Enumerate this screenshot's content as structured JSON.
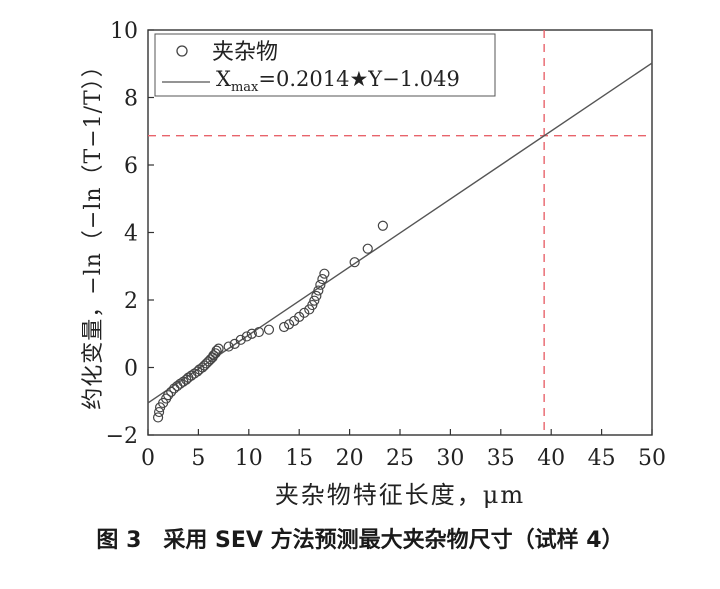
{
  "caption": "图 3　采用 SEV 方法预测最大夹杂物尺寸（试样 4）",
  "chart_data": {
    "type": "scatter",
    "title": "",
    "xlabel": "夹杂物特征长度，μm",
    "ylabel": "约化变量，−ln（−ln（T−1/T））",
    "xlim": [
      0,
      50
    ],
    "ylim": [
      -2,
      10
    ],
    "xticks": [
      0,
      5,
      10,
      15,
      20,
      25,
      30,
      35,
      40,
      45,
      50
    ],
    "yticks": [
      -2,
      0,
      2,
      4,
      6,
      8,
      10
    ],
    "grid": false,
    "legend_position": "top-left",
    "series": [
      {
        "name": "夹杂物",
        "marker": "circle-open",
        "color": "#444444",
        "points": [
          [
            1.0,
            -1.48
          ],
          [
            1.1,
            -1.32
          ],
          [
            1.2,
            -1.18
          ],
          [
            1.5,
            -1.05
          ],
          [
            1.8,
            -0.92
          ],
          [
            2.0,
            -0.82
          ],
          [
            2.3,
            -0.72
          ],
          [
            2.6,
            -0.62
          ],
          [
            2.9,
            -0.55
          ],
          [
            3.2,
            -0.48
          ],
          [
            3.5,
            -0.42
          ],
          [
            3.8,
            -0.36
          ],
          [
            4.0,
            -0.3
          ],
          [
            4.3,
            -0.24
          ],
          [
            4.6,
            -0.18
          ],
          [
            4.9,
            -0.12
          ],
          [
            5.1,
            -0.06
          ],
          [
            5.4,
            0.0
          ],
          [
            5.6,
            0.06
          ],
          [
            5.8,
            0.12
          ],
          [
            6.0,
            0.18
          ],
          [
            6.2,
            0.24
          ],
          [
            6.4,
            0.3
          ],
          [
            6.5,
            0.36
          ],
          [
            6.7,
            0.42
          ],
          [
            6.8,
            0.5
          ],
          [
            7.0,
            0.56
          ],
          [
            8.0,
            0.62
          ],
          [
            8.6,
            0.7
          ],
          [
            9.2,
            0.82
          ],
          [
            9.8,
            0.92
          ],
          [
            10.3,
            1.0
          ],
          [
            11.0,
            1.05
          ],
          [
            12.0,
            1.12
          ],
          [
            13.5,
            1.2
          ],
          [
            14.0,
            1.28
          ],
          [
            14.5,
            1.38
          ],
          [
            15.0,
            1.5
          ],
          [
            15.5,
            1.62
          ],
          [
            16.0,
            1.72
          ],
          [
            16.3,
            1.85
          ],
          [
            16.5,
            1.98
          ],
          [
            16.7,
            2.12
          ],
          [
            16.9,
            2.28
          ],
          [
            17.1,
            2.45
          ],
          [
            17.3,
            2.62
          ],
          [
            17.5,
            2.78
          ],
          [
            20.5,
            3.12
          ],
          [
            21.8,
            3.52
          ],
          [
            23.3,
            4.2
          ]
        ]
      },
      {
        "name": "Xmax=0.2014★Y−1.049",
        "type": "line",
        "color": "#555555",
        "points": [
          [
            0,
            -1.049
          ],
          [
            50,
            9.021
          ]
        ]
      }
    ],
    "annotations": {
      "vertical_dashed_line_x": 39.3,
      "horizontal_dashed_line_y": 6.87,
      "color": "#e8636b"
    }
  },
  "legend": {
    "series_label": "夹杂物",
    "fit_prefix": "X",
    "fit_subscript": "max",
    "fit_suffix": "=0.2014★Y−1.049"
  }
}
